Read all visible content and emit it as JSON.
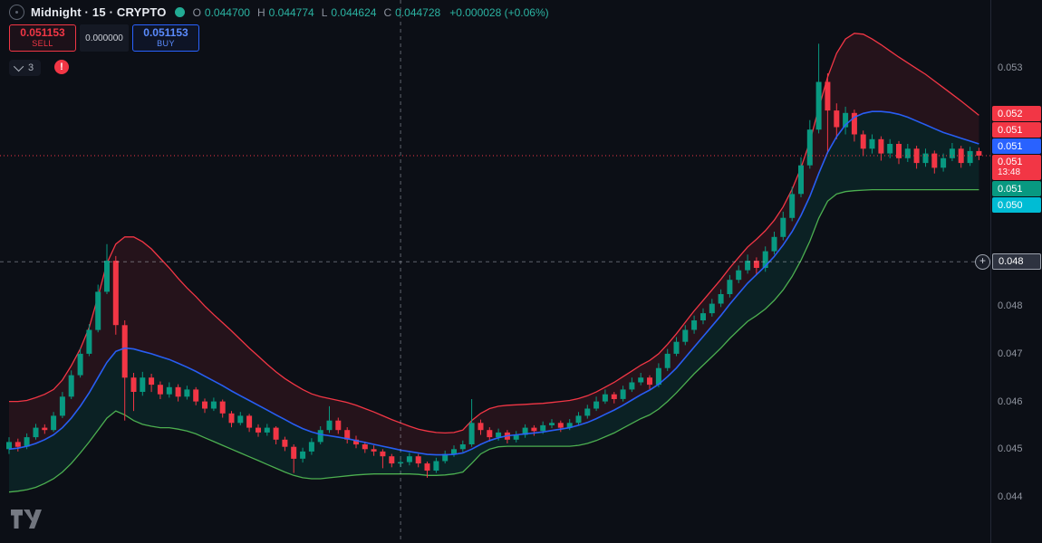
{
  "header": {
    "symbol_title": "Midnight · 15 · CRYPTO",
    "ohlc_legend": {
      "open_label": "O",
      "open": "0.044700",
      "high_label": "H",
      "high": "0.044774",
      "low_label": "L",
      "low": "0.044624",
      "close_label": "C",
      "close": "0.044728",
      "change": "+0.000028 (+0.06%)"
    }
  },
  "trade_panel": {
    "sell_price": "0.051153",
    "sell_label": "SELL",
    "spread": "0.000000",
    "buy_price": "0.051153",
    "buy_label": "BUY"
  },
  "legend_toolbar": {
    "collapsed_indicator_count": "3"
  },
  "icons": {
    "chevron_down": "v",
    "plus": "+",
    "warning": "!"
  },
  "price_scale": {
    "ticks": [
      {
        "label": "0.053",
        "price": 0.053
      },
      {
        "label": "0.048",
        "price": 0.048
      },
      {
        "label": "0.047",
        "price": 0.047
      },
      {
        "label": "0.046",
        "price": 0.046
      },
      {
        "label": "0.045",
        "price": 0.045
      },
      {
        "label": "0.044",
        "price": 0.044
      }
    ],
    "badges": [
      {
        "label": "0.052",
        "color": "#f23645"
      },
      {
        "label": "0.051",
        "color": "#f23645"
      },
      {
        "label": "0.051",
        "color": "#2962ff"
      },
      {
        "label": "0.051",
        "color": "#f23645",
        "countdown": "13:48"
      },
      {
        "label": "0.051",
        "color": "#089981"
      },
      {
        "label": "0.050",
        "color": "#00bcd4"
      }
    ],
    "crosshair": {
      "label": "0.048",
      "price": 0.04893
    }
  },
  "chart_data": {
    "type": "candlestick",
    "title": "Midnight · 15 · CRYPTO",
    "interval": "15",
    "current_price": 0.051153,
    "crosshair": {
      "index": 44,
      "price": 0.04893
    },
    "y_axis": {
      "min": 0.0434,
      "max": 0.0544,
      "visible_ticks": [
        0.044,
        0.045,
        0.046,
        0.047,
        0.048,
        0.053
      ]
    },
    "colors": {
      "up": "#089981",
      "down": "#f23645",
      "band_upper": "#f23645",
      "band_lower": "#4caf50",
      "midline": "#2962ff",
      "legend_value": "#2bb3a2",
      "crosshair_line": "#c5cbd8"
    },
    "candles": [
      [
        0.045,
        0.04525,
        0.0449,
        0.04515
      ],
      [
        0.04515,
        0.04522,
        0.04495,
        0.04505
      ],
      [
        0.04505,
        0.04533,
        0.045,
        0.04525
      ],
      [
        0.04525,
        0.04553,
        0.0452,
        0.04545
      ],
      [
        0.04545,
        0.04552,
        0.04532,
        0.0454
      ],
      [
        0.0454,
        0.04578,
        0.04536,
        0.0457
      ],
      [
        0.0457,
        0.0462,
        0.04565,
        0.0461
      ],
      [
        0.0461,
        0.04665,
        0.04605,
        0.04655
      ],
      [
        0.04655,
        0.04712,
        0.0465,
        0.047
      ],
      [
        0.047,
        0.04762,
        0.04695,
        0.0475
      ],
      [
        0.0475,
        0.04845,
        0.04745,
        0.0483
      ],
      [
        0.0483,
        0.0493,
        0.04825,
        0.04895
      ],
      [
        0.04895,
        0.04905,
        0.0474,
        0.0476
      ],
      [
        0.0476,
        0.0477,
        0.0456,
        0.0465
      ],
      [
        0.0465,
        0.0466,
        0.0458,
        0.0462
      ],
      [
        0.0462,
        0.04662,
        0.04612,
        0.0465
      ],
      [
        0.0465,
        0.04658,
        0.0462,
        0.04635
      ],
      [
        0.04635,
        0.04642,
        0.04605,
        0.04615
      ],
      [
        0.04615,
        0.0464,
        0.04608,
        0.0463
      ],
      [
        0.0463,
        0.04636,
        0.046,
        0.0461
      ],
      [
        0.0461,
        0.04633,
        0.04604,
        0.04625
      ],
      [
        0.04625,
        0.0463,
        0.04592,
        0.046
      ],
      [
        0.046,
        0.04606,
        0.04576,
        0.04585
      ],
      [
        0.04585,
        0.04608,
        0.0458,
        0.046
      ],
      [
        0.046,
        0.04604,
        0.04566,
        0.04575
      ],
      [
        0.04575,
        0.0458,
        0.04546,
        0.04555
      ],
      [
        0.04555,
        0.04578,
        0.0455,
        0.0457
      ],
      [
        0.0457,
        0.04574,
        0.04536,
        0.04545
      ],
      [
        0.04545,
        0.04552,
        0.04526,
        0.04535
      ],
      [
        0.04535,
        0.04553,
        0.04528,
        0.04545
      ],
      [
        0.04545,
        0.04548,
        0.0451,
        0.0452
      ],
      [
        0.0452,
        0.04526,
        0.04496,
        0.04505
      ],
      [
        0.04505,
        0.0451,
        0.0445,
        0.0448
      ],
      [
        0.0448,
        0.04503,
        0.04472,
        0.04495
      ],
      [
        0.04495,
        0.04523,
        0.04488,
        0.04515
      ],
      [
        0.04515,
        0.04548,
        0.0451,
        0.0454
      ],
      [
        0.0454,
        0.0459,
        0.04534,
        0.0456
      ],
      [
        0.0456,
        0.04566,
        0.04532,
        0.0454
      ],
      [
        0.0454,
        0.04546,
        0.04512,
        0.0452
      ],
      [
        0.0452,
        0.04528,
        0.04502,
        0.0451
      ],
      [
        0.0451,
        0.04516,
        0.04492,
        0.045
      ],
      [
        0.045,
        0.04508,
        0.04486,
        0.04495
      ],
      [
        0.04495,
        0.045,
        0.0446,
        0.04485
      ],
      [
        0.04485,
        0.0449,
        0.04462,
        0.0447
      ],
      [
        0.0447,
        0.044774,
        0.044624,
        0.044728
      ],
      [
        0.044728,
        0.04492,
        0.04466,
        0.04485
      ],
      [
        0.04485,
        0.0449,
        0.04462,
        0.0447
      ],
      [
        0.0447,
        0.04474,
        0.0444,
        0.04455
      ],
      [
        0.04455,
        0.04482,
        0.0445,
        0.04475
      ],
      [
        0.04475,
        0.04497,
        0.0447,
        0.0449
      ],
      [
        0.0449,
        0.04508,
        0.04484,
        0.045
      ],
      [
        0.045,
        0.04518,
        0.04494,
        0.0451
      ],
      [
        0.0451,
        0.04605,
        0.04505,
        0.04555
      ],
      [
        0.04555,
        0.04562,
        0.0453,
        0.0454
      ],
      [
        0.0454,
        0.04546,
        0.04516,
        0.04525
      ],
      [
        0.04525,
        0.04543,
        0.04518,
        0.04535
      ],
      [
        0.04535,
        0.0454,
        0.04512,
        0.0452
      ],
      [
        0.0452,
        0.04538,
        0.04514,
        0.0453
      ],
      [
        0.0453,
        0.04552,
        0.04524,
        0.04545
      ],
      [
        0.04545,
        0.0455,
        0.04528,
        0.04538
      ],
      [
        0.04538,
        0.04558,
        0.04532,
        0.0455
      ],
      [
        0.0455,
        0.04563,
        0.04544,
        0.04555
      ],
      [
        0.04555,
        0.0456,
        0.04536,
        0.04545
      ],
      [
        0.04545,
        0.04563,
        0.0454,
        0.04555
      ],
      [
        0.04555,
        0.04578,
        0.0455,
        0.0457
      ],
      [
        0.0457,
        0.04593,
        0.04564,
        0.04585
      ],
      [
        0.04585,
        0.0461,
        0.0458,
        0.046
      ],
      [
        0.046,
        0.04625,
        0.04595,
        0.04615
      ],
      [
        0.04615,
        0.0462,
        0.04596,
        0.04605
      ],
      [
        0.04605,
        0.04633,
        0.046,
        0.04625
      ],
      [
        0.04625,
        0.0465,
        0.0462,
        0.0464
      ],
      [
        0.0464,
        0.0466,
        0.04634,
        0.0465
      ],
      [
        0.0465,
        0.04655,
        0.04626,
        0.04635
      ],
      [
        0.04635,
        0.0468,
        0.0463,
        0.0467
      ],
      [
        0.0467,
        0.0471,
        0.04664,
        0.047
      ],
      [
        0.047,
        0.04735,
        0.04695,
        0.04725
      ],
      [
        0.04725,
        0.0476,
        0.04718,
        0.0475
      ],
      [
        0.0475,
        0.0478,
        0.04742,
        0.0477
      ],
      [
        0.0477,
        0.04795,
        0.04762,
        0.04785
      ],
      [
        0.04785,
        0.04815,
        0.04778,
        0.04805
      ],
      [
        0.04805,
        0.04835,
        0.04798,
        0.04825
      ],
      [
        0.04825,
        0.04865,
        0.04818,
        0.04855
      ],
      [
        0.04855,
        0.04885,
        0.04848,
        0.04875
      ],
      [
        0.04875,
        0.04908,
        0.04868,
        0.04895
      ],
      [
        0.04895,
        0.04902,
        0.04865,
        0.0488
      ],
      [
        0.0488,
        0.04925,
        0.04872,
        0.04915
      ],
      [
        0.04915,
        0.04956,
        0.04908,
        0.04945
      ],
      [
        0.04945,
        0.04998,
        0.04938,
        0.04985
      ],
      [
        0.04985,
        0.0505,
        0.04978,
        0.05035
      ],
      [
        0.05035,
        0.05112,
        0.05028,
        0.05095
      ],
      [
        0.05095,
        0.0519,
        0.05088,
        0.0517
      ],
      [
        0.0517,
        0.0535,
        0.05162,
        0.0527
      ],
      [
        0.0527,
        0.05288,
        0.0512,
        0.0521
      ],
      [
        0.0521,
        0.05225,
        0.0515,
        0.05175
      ],
      [
        0.05175,
        0.05218,
        0.0516,
        0.05205
      ],
      [
        0.05205,
        0.05212,
        0.05145,
        0.0516
      ],
      [
        0.0516,
        0.05168,
        0.05115,
        0.0513
      ],
      [
        0.0513,
        0.0516,
        0.0512,
        0.0515
      ],
      [
        0.0515,
        0.05156,
        0.05105,
        0.0512
      ],
      [
        0.0512,
        0.0515,
        0.0511,
        0.0514
      ],
      [
        0.0514,
        0.05146,
        0.05098,
        0.0511
      ],
      [
        0.0511,
        0.0514,
        0.05102,
        0.0513
      ],
      [
        0.0513,
        0.05136,
        0.05088,
        0.051
      ],
      [
        0.051,
        0.0513,
        0.05092,
        0.0512
      ],
      [
        0.0512,
        0.05126,
        0.05078,
        0.0509
      ],
      [
        0.0509,
        0.0512,
        0.05082,
        0.0511
      ],
      [
        0.0511,
        0.05142,
        0.05104,
        0.0513
      ],
      [
        0.0513,
        0.05136,
        0.0509,
        0.051
      ],
      [
        0.051,
        0.05134,
        0.05094,
        0.05125
      ],
      [
        0.05125,
        0.05132,
        0.05106,
        0.051153
      ]
    ],
    "bands": {
      "upper": [
        0.046,
        0.046,
        0.04602,
        0.04608,
        0.04615,
        0.04625,
        0.04645,
        0.04675,
        0.0471,
        0.04755,
        0.0482,
        0.0489,
        0.0493,
        0.04945,
        0.04945,
        0.04935,
        0.0492,
        0.049,
        0.0488,
        0.04858,
        0.04838,
        0.0482,
        0.048,
        0.04782,
        0.04765,
        0.04748,
        0.0473,
        0.04712,
        0.04695,
        0.04678,
        0.04662,
        0.04648,
        0.04636,
        0.04625,
        0.04616,
        0.0461,
        0.04606,
        0.04602,
        0.04598,
        0.04592,
        0.04585,
        0.04578,
        0.0457,
        0.04562,
        0.04555,
        0.04548,
        0.04542,
        0.04538,
        0.04535,
        0.04534,
        0.04535,
        0.0454,
        0.0456,
        0.04575,
        0.04585,
        0.0459,
        0.04592,
        0.04593,
        0.04594,
        0.04595,
        0.04596,
        0.04598,
        0.046,
        0.04602,
        0.04606,
        0.04612,
        0.0462,
        0.0463,
        0.0464,
        0.04652,
        0.04664,
        0.04676,
        0.04686,
        0.047,
        0.0472,
        0.04742,
        0.04766,
        0.0479,
        0.04812,
        0.04834,
        0.04856,
        0.0488,
        0.04902,
        0.04924,
        0.0494,
        0.04958,
        0.0498,
        0.05008,
        0.05045,
        0.0509,
        0.05145,
        0.05215,
        0.0528,
        0.0533,
        0.0536,
        0.05372,
        0.0537,
        0.0536,
        0.05348,
        0.05335,
        0.05322,
        0.0531,
        0.05298,
        0.05286,
        0.05272,
        0.05258,
        0.05244,
        0.0523,
        0.05215,
        0.052
      ],
      "middle": [
        0.045,
        0.04502,
        0.04506,
        0.04512,
        0.0452,
        0.0453,
        0.04545,
        0.04565,
        0.0459,
        0.04618,
        0.0465,
        0.04682,
        0.04705,
        0.04712,
        0.0471,
        0.04705,
        0.047,
        0.04694,
        0.04688,
        0.0468,
        0.04672,
        0.04663,
        0.04653,
        0.04643,
        0.04633,
        0.04622,
        0.04612,
        0.04602,
        0.04592,
        0.04582,
        0.04572,
        0.04562,
        0.04552,
        0.04543,
        0.04536,
        0.04531,
        0.04528,
        0.04525,
        0.04522,
        0.04518,
        0.04514,
        0.0451,
        0.04506,
        0.04502,
        0.04498,
        0.04495,
        0.04492,
        0.04489,
        0.04488,
        0.04488,
        0.04489,
        0.04492,
        0.045,
        0.0451,
        0.04518,
        0.04524,
        0.04528,
        0.0453,
        0.04532,
        0.04534,
        0.04536,
        0.04539,
        0.04542,
        0.04545,
        0.0455,
        0.04556,
        0.04564,
        0.04573,
        0.04582,
        0.04592,
        0.04603,
        0.04614,
        0.04624,
        0.04636,
        0.04652,
        0.0467,
        0.04692,
        0.04714,
        0.04736,
        0.04758,
        0.0478,
        0.04804,
        0.04826,
        0.04848,
        0.04866,
        0.04884,
        0.04904,
        0.04928,
        0.04956,
        0.0499,
        0.0503,
        0.05078,
        0.05122,
        0.05155,
        0.0518,
        0.05196,
        0.05204,
        0.05208,
        0.05208,
        0.05206,
        0.05202,
        0.05196,
        0.05188,
        0.0518,
        0.05172,
        0.05164,
        0.05158,
        0.05152,
        0.05146,
        0.0514
      ],
      "lower": [
        0.0441,
        0.04412,
        0.04415,
        0.0442,
        0.04428,
        0.04438,
        0.04452,
        0.0447,
        0.04492,
        0.04515,
        0.0454,
        0.04565,
        0.0458,
        0.04572,
        0.0456,
        0.04552,
        0.04548,
        0.04545,
        0.04545,
        0.04542,
        0.04538,
        0.04532,
        0.04524,
        0.04516,
        0.04508,
        0.045,
        0.04492,
        0.04484,
        0.04476,
        0.04468,
        0.0446,
        0.04452,
        0.04445,
        0.0444,
        0.04438,
        0.04438,
        0.0444,
        0.04442,
        0.04444,
        0.04446,
        0.04447,
        0.04448,
        0.04448,
        0.04448,
        0.04448,
        0.04448,
        0.04447,
        0.04445,
        0.04445,
        0.04446,
        0.04448,
        0.04452,
        0.0447,
        0.0449,
        0.045,
        0.04505,
        0.04506,
        0.04506,
        0.04506,
        0.04506,
        0.04506,
        0.04506,
        0.04506,
        0.04506,
        0.04508,
        0.04512,
        0.04518,
        0.04526,
        0.04534,
        0.04544,
        0.04554,
        0.04564,
        0.04572,
        0.04584,
        0.046,
        0.04618,
        0.04638,
        0.04658,
        0.04676,
        0.04694,
        0.04712,
        0.04732,
        0.0475,
        0.04768,
        0.0478,
        0.04794,
        0.04812,
        0.04834,
        0.04862,
        0.04896,
        0.04936,
        0.04984,
        0.0502,
        0.05035,
        0.0504,
        0.05042,
        0.05043,
        0.05044,
        0.05044,
        0.05044,
        0.05044,
        0.05044,
        0.05044,
        0.05044,
        0.05044,
        0.05044,
        0.05044,
        0.05044,
        0.05044,
        0.05044
      ]
    }
  }
}
